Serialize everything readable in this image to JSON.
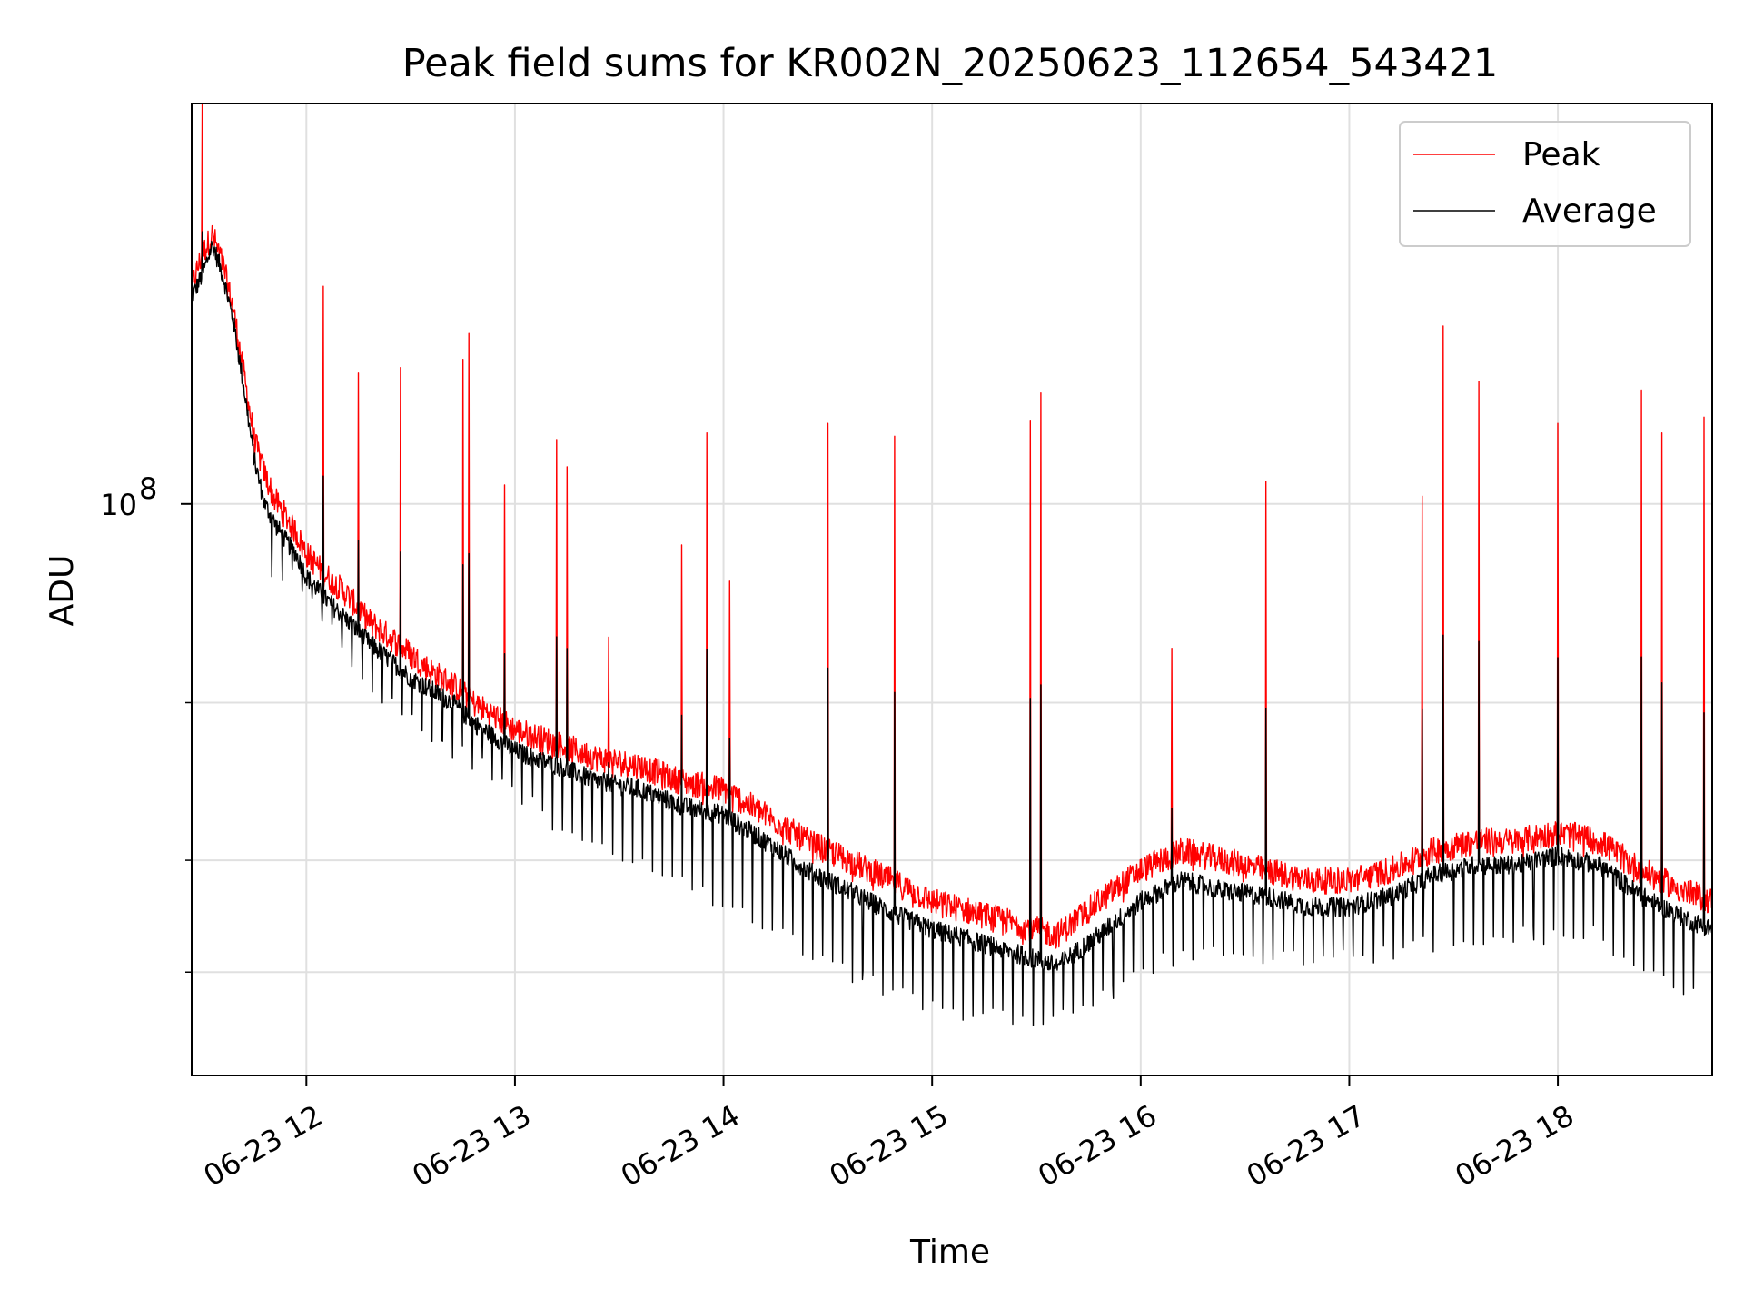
{
  "chart_data": {
    "type": "line",
    "title": "Peak field sums for KR002N_20250623_112654_543421",
    "xlabel": "Time",
    "ylabel": "ADU",
    "y_scale": "log",
    "x_unit": "hours (decimal, 2025-06-23)",
    "xlim": [
      11.45,
      18.74
    ],
    "ylim": [
      23000000,
      280000000
    ],
    "x_tick_values": [
      12,
      13,
      14,
      15,
      16,
      17,
      18
    ],
    "x_tick_labels": [
      "06-23 12",
      "06-23 13",
      "06-23 14",
      "06-23 15",
      "06-23 16",
      "06-23 17",
      "06-23 18"
    ],
    "y_major_ticks": [
      {
        "value": 100000000,
        "label_base": "10",
        "label_exp": "8"
      }
    ],
    "y_minor_ticks": [
      30000000,
      40000000,
      60000000
    ],
    "grid": true,
    "legend_position": "top-right",
    "series": [
      {
        "name": "Peak",
        "color": "#ff0000",
        "x": [
          11.45,
          11.5,
          11.55,
          11.6,
          11.65,
          11.7,
          11.75,
          11.8,
          11.85,
          11.9,
          11.95,
          12.0,
          12.1,
          12.2,
          12.3,
          12.4,
          12.5,
          12.6,
          12.7,
          12.8,
          12.9,
          13.0,
          13.2,
          13.4,
          13.6,
          13.8,
          14.0,
          14.2,
          14.4,
          14.6,
          14.8,
          15.0,
          15.2,
          15.4,
          15.6,
          15.8,
          16.0,
          16.2,
          16.4,
          16.6,
          16.8,
          17.0,
          17.2,
          17.4,
          17.6,
          17.8,
          18.0,
          18.2,
          18.4,
          18.6,
          18.74
        ],
        "y": [
          175000000,
          190000000,
          200000000,
          185000000,
          165000000,
          140000000,
          118000000,
          108000000,
          101000000,
          97000000,
          93000000,
          88000000,
          83000000,
          79000000,
          74000000,
          71000000,
          68000000,
          65000000,
          63000000,
          60000000,
          58000000,
          56000000,
          54000000,
          52000000,
          51000000,
          49000000,
          48000000,
          45000000,
          42000000,
          40000000,
          38000000,
          36000000,
          35000000,
          34000000,
          33000000,
          36000000,
          39000000,
          41000000,
          40000000,
          39000000,
          38000000,
          38000000,
          39000000,
          41000000,
          42000000,
          42000000,
          43000000,
          42000000,
          39000000,
          37000000,
          36000000
        ],
        "spikes": [
          {
            "x": 11.5,
            "y": 280000000
          },
          {
            "x": 12.08,
            "y": 175000000
          },
          {
            "x": 12.25,
            "y": 140000000
          },
          {
            "x": 12.45,
            "y": 142000000
          },
          {
            "x": 12.75,
            "y": 145000000
          },
          {
            "x": 12.78,
            "y": 155000000
          },
          {
            "x": 12.95,
            "y": 105000000
          },
          {
            "x": 13.2,
            "y": 118000000
          },
          {
            "x": 13.25,
            "y": 110000000
          },
          {
            "x": 13.45,
            "y": 71000000
          },
          {
            "x": 13.8,
            "y": 90000000
          },
          {
            "x": 13.92,
            "y": 120000000
          },
          {
            "x": 14.03,
            "y": 82000000
          },
          {
            "x": 14.5,
            "y": 123000000
          },
          {
            "x": 14.82,
            "y": 119000000
          },
          {
            "x": 15.47,
            "y": 124000000
          },
          {
            "x": 15.52,
            "y": 133000000
          },
          {
            "x": 16.15,
            "y": 69000000
          },
          {
            "x": 16.6,
            "y": 106000000
          },
          {
            "x": 17.35,
            "y": 102000000
          },
          {
            "x": 17.45,
            "y": 158000000
          },
          {
            "x": 17.62,
            "y": 137000000
          },
          {
            "x": 18.0,
            "y": 123000000
          },
          {
            "x": 18.4,
            "y": 134000000
          },
          {
            "x": 18.5,
            "y": 120000000
          },
          {
            "x": 18.7,
            "y": 125000000
          }
        ]
      },
      {
        "name": "Average",
        "color": "#000000",
        "x": [
          11.45,
          11.5,
          11.55,
          11.6,
          11.65,
          11.7,
          11.75,
          11.8,
          11.85,
          11.9,
          11.95,
          12.0,
          12.1,
          12.2,
          12.3,
          12.4,
          12.5,
          12.6,
          12.7,
          12.8,
          12.9,
          13.0,
          13.2,
          13.4,
          13.6,
          13.8,
          14.0,
          14.2,
          14.4,
          14.6,
          14.8,
          15.0,
          15.2,
          15.4,
          15.6,
          15.8,
          16.0,
          16.2,
          16.4,
          16.6,
          16.8,
          17.0,
          17.2,
          17.4,
          17.6,
          17.8,
          18.0,
          18.2,
          18.4,
          18.6,
          18.74
        ],
        "y": [
          170000000,
          180000000,
          195000000,
          180000000,
          160000000,
          135000000,
          112000000,
          100000000,
          95000000,
          91000000,
          88000000,
          83000000,
          78000000,
          74000000,
          70000000,
          67000000,
          64000000,
          62000000,
          60000000,
          57000000,
          55000000,
          53000000,
          51000000,
          49000000,
          48000000,
          46000000,
          45000000,
          42000000,
          39000000,
          37000000,
          35000000,
          33500000,
          32500000,
          31500000,
          30500000,
          33000000,
          36000000,
          38000000,
          37000000,
          36500000,
          35500000,
          35500000,
          36500000,
          38500000,
          39500000,
          39500000,
          40500000,
          39500000,
          36500000,
          34500000,
          33500000
        ],
        "dips": [
          {
            "x": 11.95,
            "y": 84000000
          },
          {
            "x": 12.3,
            "y": 62000000
          },
          {
            "x": 12.6,
            "y": 55000000
          },
          {
            "x": 12.9,
            "y": 50000000
          },
          {
            "x": 13.3,
            "y": 42000000
          },
          {
            "x": 13.7,
            "y": 39000000
          },
          {
            "x": 14.0,
            "y": 36000000
          },
          {
            "x": 14.3,
            "y": 33000000
          },
          {
            "x": 14.6,
            "y": 30000000
          },
          {
            "x": 14.9,
            "y": 28000000
          },
          {
            "x": 15.2,
            "y": 27000000
          },
          {
            "x": 15.5,
            "y": 26000000
          },
          {
            "x": 15.8,
            "y": 28000000
          },
          {
            "x": 16.1,
            "y": 31000000
          },
          {
            "x": 16.4,
            "y": 31500000
          },
          {
            "x": 16.7,
            "y": 31000000
          },
          {
            "x": 17.0,
            "y": 31000000
          },
          {
            "x": 17.3,
            "y": 32000000
          },
          {
            "x": 17.6,
            "y": 33000000
          },
          {
            "x": 17.9,
            "y": 33000000
          },
          {
            "x": 18.2,
            "y": 33000000
          },
          {
            "x": 18.45,
            "y": 29500000
          },
          {
            "x": 18.7,
            "y": 28000000
          }
        ]
      }
    ]
  }
}
